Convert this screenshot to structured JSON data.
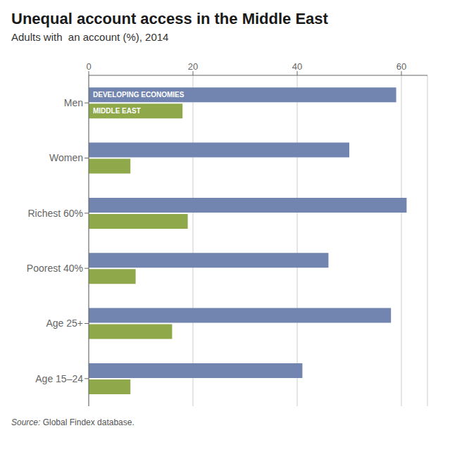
{
  "chart_data": {
    "type": "bar",
    "orientation": "horizontal",
    "title": "Unequal account access in the Middle East",
    "subtitle": "Adults with  an account (%), 2014",
    "source_italic": "Source:",
    "source_regular": " Global Findex database.",
    "categories": [
      "Men",
      "Women",
      "Richest 60%",
      "Poorest 40%",
      "Age 25+",
      "Age 15–24"
    ],
    "series": [
      {
        "name": "DEVELOPING ECONOMIES",
        "color": "#7285b0",
        "values": [
          59,
          50,
          61,
          46,
          58,
          41
        ]
      },
      {
        "name": "MIDDLE EAST",
        "color": "#8ea84a",
        "values": [
          18,
          8,
          19,
          9,
          16,
          8
        ]
      }
    ],
    "xlim": [
      0,
      65
    ],
    "xticks": [
      0,
      20,
      40,
      60
    ],
    "grid": true
  }
}
